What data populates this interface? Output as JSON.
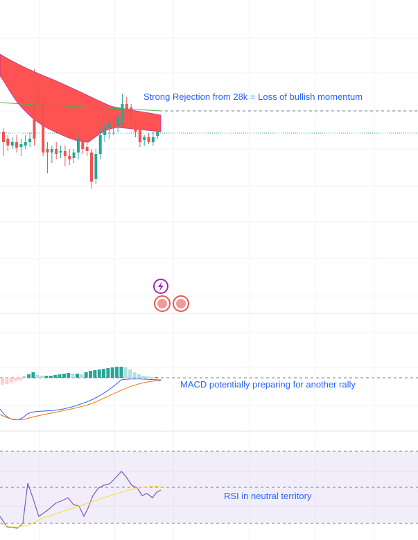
{
  "annotations": {
    "price": "Strong Rejection from 28k = Loss of bullish momentum",
    "macd": "MACD potentially preparing for another rally",
    "rsi": "RSI in neutral territory"
  }
}
